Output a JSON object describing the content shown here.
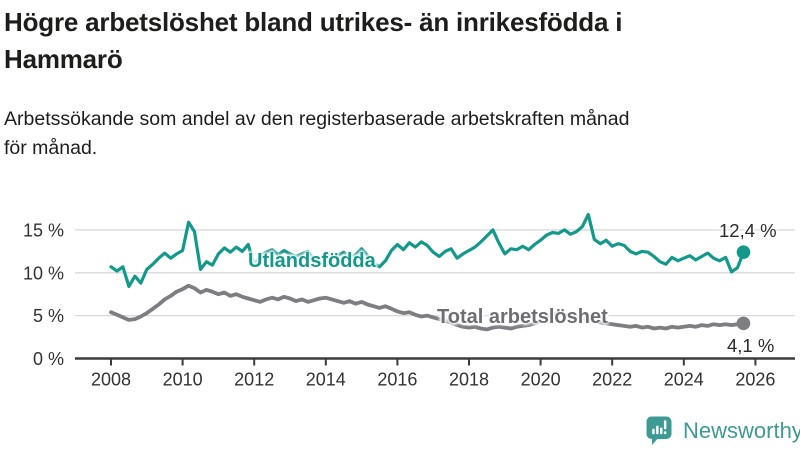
{
  "header": {
    "title_line1": "Högre arbetslöshet bland utrikes- än inrikesfödda i",
    "title_line2": "Hammarö",
    "subtitle_line1": "Arbetssökande som andel av den registerbaserade arbetskraften månad",
    "subtitle_line2": "för månad."
  },
  "chart_data": {
    "type": "line",
    "title": "Högre arbetslöshet bland utrikes- än inrikesfödda i Hammarö",
    "subtitle": "Arbetssökande som andel av den registerbaserade arbetskraften månad för månad.",
    "grid": "horizontal",
    "legend_position": "inline-labels",
    "ylim": [
      0,
      17.5
    ],
    "x_start": 2008.0,
    "x_step_years": 0.166667,
    "x_axis": {
      "ticks": [
        {
          "v": 2008,
          "label": "2008"
        },
        {
          "v": 2010,
          "label": "2010"
        },
        {
          "v": 2012,
          "label": "2012"
        },
        {
          "v": 2014,
          "label": "2014"
        },
        {
          "v": 2016,
          "label": "2016"
        },
        {
          "v": 2018,
          "label": "2018"
        },
        {
          "v": 2020,
          "label": "2020"
        },
        {
          "v": 2022,
          "label": "2022"
        },
        {
          "v": 2024,
          "label": "2024"
        },
        {
          "v": 2026,
          "label": "2026"
        }
      ]
    },
    "y_axis": {
      "ticks": [
        {
          "v": 0,
          "label": "0 %"
        },
        {
          "v": 5,
          "label": "5 %"
        },
        {
          "v": 10,
          "label": "10 %"
        },
        {
          "v": 15,
          "label": "15 %"
        }
      ]
    },
    "series": [
      {
        "name": "Utlandsfödda",
        "color": "#13998c",
        "line_width": 3.2,
        "end_label": "12,4 %",
        "end_value": 12.4,
        "values": [
          10.7,
          10.2,
          10.7,
          8.4,
          9.6,
          8.8,
          10.4,
          11.0,
          11.7,
          12.3,
          11.7,
          12.2,
          12.6,
          15.9,
          14.8,
          10.4,
          11.3,
          10.9,
          12.2,
          12.9,
          12.4,
          13.0,
          12.5,
          13.3,
          10.9,
          11.9,
          12.4,
          12.7,
          12.1,
          12.6,
          12.2,
          11.9,
          12.2,
          12.5,
          11.5,
          11.2,
          10.9,
          11.6,
          12.0,
          12.4,
          11.8,
          12.1,
          12.8,
          12.0,
          11.1,
          10.7,
          11.4,
          12.6,
          13.3,
          12.7,
          13.5,
          13.0,
          13.6,
          13.2,
          12.4,
          11.9,
          12.5,
          12.8,
          11.7,
          12.2,
          12.6,
          13.0,
          13.6,
          14.3,
          15.0,
          13.5,
          12.2,
          12.8,
          12.7,
          13.1,
          12.7,
          13.3,
          13.8,
          14.4,
          14.7,
          14.6,
          15.0,
          14.5,
          14.8,
          15.4,
          16.8,
          13.9,
          13.4,
          13.8,
          13.1,
          13.4,
          13.2,
          12.5,
          12.2,
          12.5,
          12.4,
          11.9,
          11.3,
          11.0,
          11.8,
          11.4,
          11.7,
          12.0,
          11.5,
          11.9,
          12.3,
          11.7,
          11.4,
          11.8,
          10.1,
          10.6,
          12.4
        ]
      },
      {
        "name": "Total arbetslöshet",
        "color": "#7d7d82",
        "line_width": 3.8,
        "end_label": "4,1 %",
        "end_value": 4.1,
        "values": [
          5.4,
          5.1,
          4.8,
          4.5,
          4.6,
          4.9,
          5.3,
          5.8,
          6.3,
          6.9,
          7.3,
          7.8,
          8.1,
          8.5,
          8.2,
          7.7,
          8.0,
          7.8,
          7.5,
          7.7,
          7.3,
          7.5,
          7.2,
          7.0,
          6.8,
          6.6,
          6.9,
          7.1,
          6.9,
          7.2,
          7.0,
          6.7,
          6.9,
          6.6,
          6.8,
          7.0,
          7.1,
          6.9,
          6.7,
          6.5,
          6.7,
          6.4,
          6.6,
          6.3,
          6.1,
          5.9,
          6.1,
          5.8,
          5.5,
          5.3,
          5.4,
          5.1,
          4.9,
          5.0,
          4.8,
          4.6,
          4.4,
          4.2,
          3.9,
          3.7,
          3.6,
          3.7,
          3.5,
          3.4,
          3.6,
          3.7,
          3.6,
          3.5,
          3.7,
          3.8,
          3.9,
          4.1,
          4.4,
          4.9,
          5.2,
          5.3,
          5.1,
          5.0,
          4.9,
          4.7,
          4.5,
          4.4,
          4.2,
          4.1,
          4.0,
          3.9,
          3.8,
          3.7,
          3.8,
          3.6,
          3.7,
          3.5,
          3.6,
          3.5,
          3.7,
          3.6,
          3.7,
          3.8,
          3.7,
          3.9,
          3.8,
          4.0,
          3.9,
          4.0,
          3.9,
          4.0,
          4.1
        ]
      }
    ]
  },
  "logo": {
    "text": "Newsworthy",
    "color": "#3d9a93"
  }
}
